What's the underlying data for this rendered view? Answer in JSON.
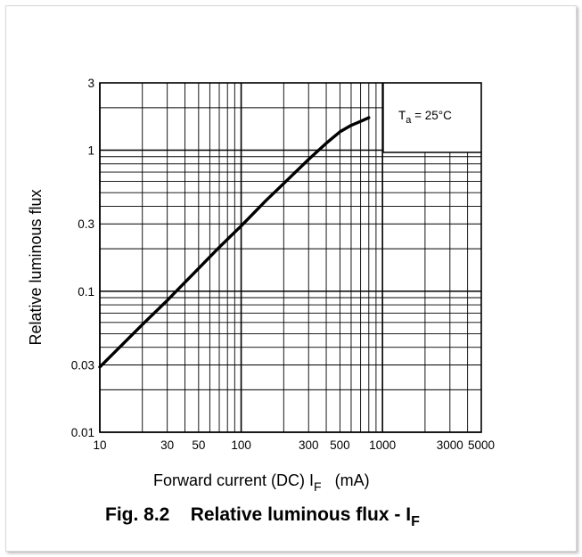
{
  "chart_data": {
    "type": "line",
    "title_main": "Fig. 8.2    Relative luminous flux - I",
    "title_sub": "F",
    "xlabel_main": "Forward current (DC)   I",
    "xlabel_sub": "F",
    "xlabel_unit": "(mA)",
    "ylabel": "Relative luminous flux",
    "annotation_main": "T",
    "annotation_sub": "a",
    "annotation_rest": " = 25°C",
    "xscale": "log",
    "yscale": "log",
    "xlim": [
      10,
      5000
    ],
    "ylim": [
      0.01,
      3
    ],
    "grid": true,
    "xticks": [
      {
        "value": 10,
        "label": "10"
      },
      {
        "value": 30,
        "label": "30"
      },
      {
        "value": 50,
        "label": "50"
      },
      {
        "value": 100,
        "label": "100"
      },
      {
        "value": 300,
        "label": "300"
      },
      {
        "value": 500,
        "label": "500"
      },
      {
        "value": 1000,
        "label": "1000"
      },
      {
        "value": 3000,
        "label": "3000"
      },
      {
        "value": 5000,
        "label": "5000"
      }
    ],
    "yticks": [
      {
        "value": 0.01,
        "label": "0.01"
      },
      {
        "value": 0.03,
        "label": "0.03"
      },
      {
        "value": 0.1,
        "label": "0.1"
      },
      {
        "value": 0.3,
        "label": "0.3"
      },
      {
        "value": 1,
        "label": "1"
      },
      {
        "value": 3,
        "label": "3"
      }
    ],
    "series": [
      {
        "color": "#000000",
        "x": [
          10,
          20,
          30,
          50,
          70,
          100,
          150,
          200,
          300,
          400,
          500,
          600,
          700,
          800
        ],
        "y": [
          0.029,
          0.058,
          0.086,
          0.145,
          0.205,
          0.29,
          0.44,
          0.58,
          0.86,
          1.12,
          1.35,
          1.5,
          1.6,
          1.7
        ]
      }
    ]
  }
}
